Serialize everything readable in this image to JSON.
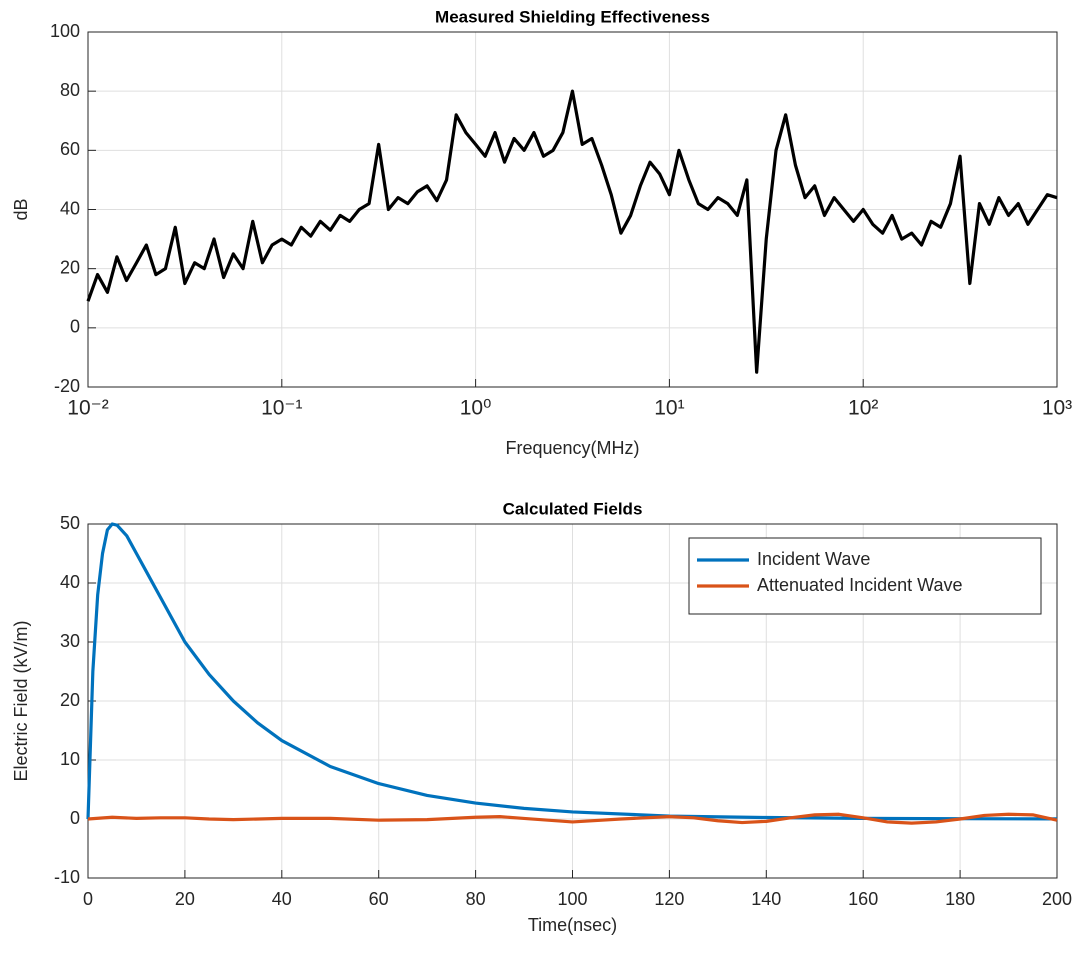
{
  "chart_data": [
    {
      "type": "line",
      "title": "Measured Shielding Effectiveness",
      "xlabel": "Frequency(MHz)",
      "ylabel": "dB",
      "xscale": "log",
      "grid": true,
      "xlim": [
        0.01,
        1000
      ],
      "ylim": [
        -20,
        100
      ],
      "xticks": [
        {
          "value": 0.01,
          "label": "10⁻²"
        },
        {
          "value": 0.1,
          "label": "10⁻¹"
        },
        {
          "value": 1,
          "label": "10⁰"
        },
        {
          "value": 10,
          "label": "10¹"
        },
        {
          "value": 100,
          "label": "10²"
        },
        {
          "value": 1000,
          "label": "10³"
        }
      ],
      "yticks": [
        -20,
        0,
        20,
        40,
        60,
        80,
        100
      ],
      "x": [
        0.01,
        0.0112,
        0.0126,
        0.0141,
        0.0158,
        0.0178,
        0.02,
        0.0224,
        0.0251,
        0.0282,
        0.0316,
        0.0355,
        0.0398,
        0.0447,
        0.0501,
        0.0562,
        0.0631,
        0.0708,
        0.0794,
        0.0891,
        0.1,
        0.112,
        0.126,
        0.141,
        0.158,
        0.178,
        0.2,
        0.224,
        0.251,
        0.282,
        0.316,
        0.355,
        0.398,
        0.447,
        0.501,
        0.562,
        0.631,
        0.708,
        0.794,
        0.891,
        1,
        1.12,
        1.26,
        1.41,
        1.58,
        1.78,
        2,
        2.24,
        2.51,
        2.82,
        3.16,
        3.55,
        3.98,
        4.47,
        5.01,
        5.62,
        6.31,
        7.08,
        7.94,
        8.91,
        10,
        11.2,
        12.6,
        14.1,
        15.8,
        17.8,
        20,
        22.4,
        25.1,
        28.2,
        31.6,
        35.5,
        39.8,
        44.7,
        50.1,
        56.2,
        63.1,
        70.8,
        79.4,
        89.1,
        100,
        112,
        126,
        141,
        158,
        178,
        200,
        224,
        251,
        282,
        316,
        355,
        398,
        447,
        501,
        562,
        631,
        708,
        794,
        891,
        1000
      ],
      "series": [
        {
          "color": "#000000",
          "values": [
            9,
            18,
            12,
            24,
            16,
            22,
            28,
            18,
            20,
            34,
            15,
            22,
            20,
            30,
            17,
            25,
            20,
            36,
            22,
            28,
            30,
            28,
            34,
            31,
            36,
            33,
            38,
            36,
            40,
            42,
            62,
            40,
            44,
            42,
            46,
            48,
            43,
            50,
            72,
            66,
            62,
            58,
            66,
            56,
            64,
            60,
            66,
            58,
            60,
            66,
            80,
            62,
            64,
            55,
            45,
            32,
            38,
            48,
            56,
            52,
            45,
            60,
            50,
            42,
            40,
            44,
            42,
            38,
            50,
            -15,
            30,
            60,
            72,
            55,
            44,
            48,
            38,
            44,
            40,
            36,
            40,
            35,
            32,
            38,
            30,
            32,
            28,
            36,
            34,
            42,
            58,
            15,
            42,
            35,
            44,
            38,
            42,
            35,
            40,
            45,
            44
          ]
        }
      ]
    },
    {
      "type": "line",
      "title": "Calculated Fields",
      "xlabel": "Time(nsec)",
      "ylabel": "Electric Field (kV/m)",
      "grid": true,
      "legend": "upper right",
      "xlim": [
        0,
        200
      ],
      "ylim": [
        -10,
        50
      ],
      "xticks": [
        0,
        20,
        40,
        60,
        80,
        100,
        120,
        140,
        160,
        180,
        200
      ],
      "yticks": [
        -10,
        0,
        10,
        20,
        30,
        40,
        50
      ],
      "series": [
        {
          "name": "Incident Wave",
          "color": "#0072bd",
          "x": [
            0,
            1,
            2,
            3,
            4,
            5,
            6,
            8,
            10,
            12,
            15,
            20,
            25,
            30,
            35,
            40,
            50,
            60,
            70,
            80,
            90,
            100,
            120,
            140,
            160,
            180,
            200
          ],
          "values": [
            0,
            25,
            38,
            45,
            49,
            50,
            49.8,
            48,
            45,
            42,
            37.5,
            30,
            24.5,
            20,
            16.3,
            13.3,
            8.9,
            6,
            4,
            2.7,
            1.8,
            1.2,
            0.5,
            0.25,
            0.1,
            0.05,
            0.02
          ]
        },
        {
          "name": "Attenuated Incident Wave",
          "color": "#d95319",
          "x": [
            0,
            5,
            10,
            15,
            20,
            25,
            30,
            40,
            50,
            60,
            70,
            80,
            85,
            90,
            100,
            110,
            120,
            125,
            130,
            135,
            140,
            145,
            150,
            155,
            160,
            165,
            170,
            175,
            180,
            185,
            190,
            195,
            200
          ],
          "values": [
            0,
            0.3,
            0.1,
            0.2,
            0.2,
            0,
            -0.1,
            0.1,
            0.1,
            -0.2,
            -0.1,
            0.3,
            0.4,
            0.1,
            -0.5,
            0,
            0.4,
            0.2,
            -0.3,
            -0.6,
            -0.4,
            0.2,
            0.7,
            0.8,
            0.2,
            -0.5,
            -0.7,
            -0.5,
            0,
            0.6,
            0.8,
            0.7,
            -0.2
          ]
        }
      ]
    }
  ]
}
